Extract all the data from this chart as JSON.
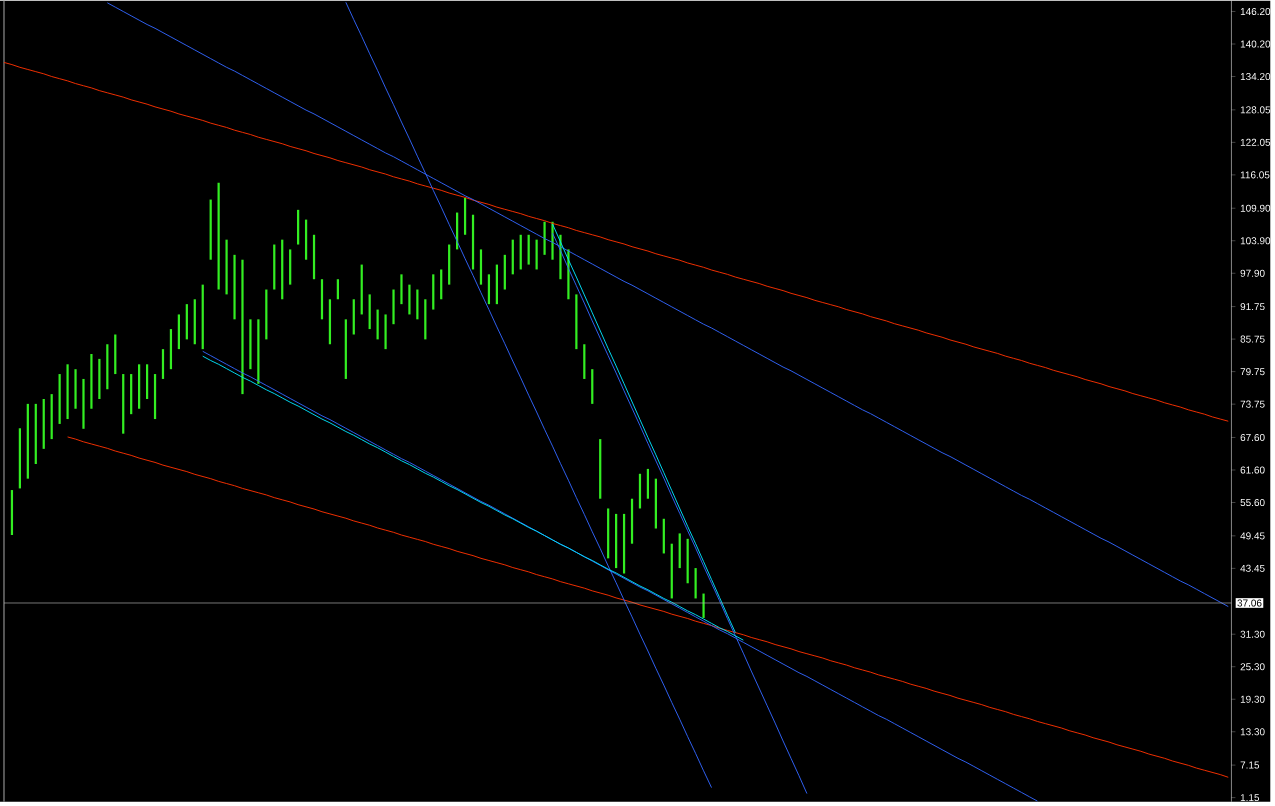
{
  "chart_data": {
    "type": "bar",
    "ylim": [
      0.4,
      148.2
    ],
    "tick_labels": "y",
    "grid": false,
    "categories": [
      null,
      null,
      null,
      null,
      null,
      null,
      null,
      null,
      null,
      null,
      null,
      null,
      null,
      null,
      null,
      null,
      null,
      null,
      null,
      null,
      null,
      null,
      null,
      null,
      null,
      null,
      null,
      null,
      null,
      null,
      null,
      null,
      null,
      null,
      null,
      null,
      null,
      null,
      null,
      null,
      null,
      null,
      null,
      null,
      null,
      null,
      null,
      null,
      null,
      null,
      null,
      null,
      null,
      null,
      null,
      null,
      null,
      null,
      null,
      null,
      null,
      null,
      null,
      null,
      null,
      null,
      null,
      null,
      null,
      null,
      null,
      null,
      null,
      null,
      null,
      null,
      null,
      null,
      null,
      null,
      null,
      null,
      null,
      null,
      null,
      null,
      null,
      null,
      null,
      null,
      null,
      null,
      null,
      null,
      null,
      null,
      null,
      null,
      null,
      null,
      null,
      null,
      null,
      null,
      null,
      null,
      null,
      null,
      null,
      null,
      null,
      null,
      null,
      null,
      null,
      null,
      null,
      null,
      null,
      null,
      null,
      null,
      null,
      null,
      null,
      null,
      null,
      null,
      null,
      null,
      null,
      null,
      null,
      null,
      null,
      null,
      null,
      null,
      null,
      null,
      null,
      null,
      null,
      null,
      null,
      null,
      null,
      null,
      null,
      null,
      null,
      null,
      null,
      null,
      null
    ],
    "yticks": [
      {
        "value": 1.15,
        "label": "1.15"
      },
      {
        "value": 7.15,
        "label": "7.15"
      },
      {
        "value": 13.3,
        "label": "13.30"
      },
      {
        "value": 19.3,
        "label": "19.30"
      },
      {
        "value": 25.3,
        "label": "25.30"
      },
      {
        "value": 31.3,
        "label": "31.30"
      },
      {
        "value": 43.45,
        "label": "43.45"
      },
      {
        "value": 49.45,
        "label": "49.45"
      },
      {
        "value": 55.6,
        "label": "55.60"
      },
      {
        "value": 61.6,
        "label": "61.60"
      },
      {
        "value": 67.6,
        "label": "67.60"
      },
      {
        "value": 73.75,
        "label": "73.75"
      },
      {
        "value": 79.75,
        "label": "79.75"
      },
      {
        "value": 85.75,
        "label": "85.75"
      },
      {
        "value": 91.75,
        "label": "91.75"
      },
      {
        "value": 97.9,
        "label": "97.90"
      },
      {
        "value": 103.9,
        "label": "103.90"
      },
      {
        "value": 109.9,
        "label": "109.90"
      },
      {
        "value": 116.05,
        "label": "116.05"
      },
      {
        "value": 122.05,
        "label": "122.05"
      },
      {
        "value": 128.05,
        "label": "128.05"
      },
      {
        "value": 134.2,
        "label": "134.20"
      },
      {
        "value": 140.2,
        "label": "140.20"
      },
      {
        "value": 146.2,
        "label": "146.20"
      }
    ],
    "ref_lines": [
      {
        "axis": "y",
        "value": 37.06,
        "label": "37.06",
        "color": "#b0b0b0"
      }
    ],
    "series": [
      {
        "color": "#33ee22",
        "base": [
          null,
          49.6,
          58.2,
          60.0,
          62.7,
          65.5,
          67.3,
          70.1,
          71.0,
          72.9,
          69.2,
          72.9,
          74.7,
          76.5,
          79.3,
          68.3,
          71.9,
          72.9,
          74.7,
          71.0,
          78.4,
          80.2,
          83.9,
          85.7,
          84.8,
          83.9,
          100.4,
          94.9,
          94.0,
          89.4,
          75.6,
          80.2,
          77.5,
          85.7,
          94.9,
          93.1,
          95.8,
          103.2,
          100.4,
          96.8,
          89.4,
          84.8,
          93.1,
          78.4,
          86.6,
          90.3,
          87.6,
          85.7,
          83.9,
          88.5,
          92.2,
          90.3,
          89.4,
          85.7,
          91.2,
          93.1,
          95.8,
          102.3,
          105.0,
          98.6,
          95.8,
          92.2,
          92.2,
          94.9,
          97.7,
          98.6,
          99.5,
          98.6,
          101.3,
          100.4,
          96.8,
          93.1,
          83.9,
          78.4,
          73.8,
          56.3,
          45.3,
          43.5,
          42.5,
          48.0,
          54.5,
          56.3,
          50.8,
          46.2,
          37.9,
          43.5,
          40.7,
          37.9,
          34.3,
          null,
          null,
          null,
          null,
          null,
          null,
          null,
          null,
          null,
          null,
          null,
          null,
          null,
          null,
          null,
          null,
          null,
          null,
          null,
          null,
          null,
          null,
          null,
          null,
          null,
          null,
          null,
          null,
          null,
          null,
          null,
          null,
          null,
          null,
          null,
          null,
          null,
          null,
          null,
          null,
          null,
          null,
          null,
          null,
          null,
          null,
          null,
          null,
          null,
          null,
          null,
          null,
          null,
          null,
          null,
          null,
          null,
          null,
          null,
          null,
          null,
          null,
          null,
          null,
          null,
          null
        ],
        "values": [
          null,
          8.3,
          11.1,
          13.8,
          11.1,
          9.2,
          8.3,
          9.2,
          10.1,
          7.3,
          9.2,
          10.1,
          7.4,
          8.3,
          7.3,
          11.0,
          7.4,
          8.2,
          6.4,
          8.3,
          5.5,
          7.4,
          6.4,
          6.5,
          8.3,
          11.9,
          11.1,
          19.7,
          10.1,
          11.9,
          24.8,
          9.2,
          11.9,
          9.2,
          8.3,
          11.0,
          6.5,
          6.4,
          7.4,
          8.2,
          7.4,
          8.3,
          3.7,
          11.0,
          6.5,
          9.2,
          6.4,
          5.5,
          6.4,
          6.4,
          5.5,
          5.5,
          5.5,
          7.4,
          6.5,
          5.5,
          7.4,
          6.8,
          6.8,
          10.1,
          6.5,
          5.5,
          7.3,
          6.4,
          6.4,
          6.4,
          5.5,
          5.5,
          6.1,
          7.0,
          8.2,
          9.2,
          10.1,
          6.4,
          6.4,
          11.0,
          9.2,
          10.0,
          11.0,
          8.3,
          6.4,
          5.5,
          9.2,
          6.4,
          10.1,
          6.4,
          8.2,
          5.6,
          4.5,
          null,
          null,
          null,
          null,
          null,
          null,
          null,
          null,
          null,
          null,
          null,
          null,
          null,
          null,
          null,
          null,
          null,
          null,
          null,
          null,
          null,
          null,
          null,
          null,
          null,
          null,
          null,
          null,
          null,
          null,
          null,
          null,
          null,
          null,
          null,
          null,
          null,
          null,
          null,
          null,
          null,
          null,
          null,
          null,
          null,
          null,
          null,
          null,
          null,
          null,
          null,
          null,
          null,
          null,
          null,
          null,
          null,
          null,
          null,
          null,
          null,
          null,
          null,
          null,
          null,
          null
        ]
      },
      {
        "type": "line",
        "color": "#ff3300",
        "values": [
          136.8,
          136.4,
          135.9,
          135.5,
          135.1,
          134.7,
          134.2,
          133.8,
          133.4,
          132.9,
          132.5,
          132.1,
          131.6,
          131.2,
          130.8,
          130.4,
          129.9,
          129.5,
          129.1,
          128.6,
          128.2,
          127.8,
          127.3,
          126.9,
          126.5,
          126.1,
          125.6,
          125.2,
          124.8,
          124.3,
          123.9,
          123.5,
          123.0,
          122.6,
          122.2,
          121.8,
          121.3,
          120.9,
          120.5,
          120.0,
          119.6,
          119.2,
          118.7,
          118.3,
          117.9,
          117.5,
          117.0,
          116.6,
          116.2,
          115.7,
          115.3,
          114.9,
          114.4,
          114.0,
          113.6,
          113.2,
          112.7,
          112.3,
          111.9,
          111.4,
          111.0,
          110.6,
          110.1,
          109.7,
          109.3,
          108.9,
          108.4,
          108.0,
          107.6,
          107.1,
          106.7,
          106.3,
          105.8,
          105.4,
          105.0,
          104.6,
          104.1,
          103.7,
          103.3,
          102.8,
          102.4,
          102.0,
          101.5,
          101.1,
          100.7,
          100.3,
          99.8,
          99.4,
          99.0,
          98.5,
          98.1,
          97.7,
          97.2,
          96.8,
          96.4,
          96.0,
          95.5,
          95.1,
          94.7,
          94.2,
          93.8,
          93.4,
          92.9,
          92.5,
          92.1,
          91.7,
          91.2,
          90.8,
          90.4,
          89.9,
          89.5,
          89.1,
          88.6,
          88.2,
          87.8,
          87.4,
          86.9,
          86.5,
          86.1,
          85.6,
          85.2,
          84.8,
          84.3,
          83.9,
          83.5,
          83.1,
          82.6,
          82.2,
          81.8,
          81.3,
          80.9,
          80.5,
          80.0,
          79.6,
          79.2,
          78.8,
          78.3,
          77.9,
          77.5,
          77.0,
          76.6,
          76.2,
          75.7,
          75.3,
          74.9,
          74.5,
          74.0,
          73.6,
          73.2,
          72.7,
          72.3,
          71.9,
          71.4,
          71.0,
          70.6
        ]
      },
      {
        "type": "line",
        "color": "#ff3300",
        "values": [
          null,
          null,
          null,
          null,
          null,
          null,
          null,
          null,
          67.7,
          67.3,
          66.8,
          66.4,
          66.0,
          65.6,
          65.1,
          64.7,
          64.3,
          63.8,
          63.4,
          63.0,
          62.5,
          62.1,
          61.7,
          61.3,
          60.8,
          60.4,
          60.0,
          59.5,
          59.1,
          58.7,
          58.2,
          57.8,
          57.4,
          57.0,
          56.5,
          56.1,
          55.7,
          55.2,
          54.8,
          54.4,
          53.9,
          53.5,
          53.1,
          52.7,
          52.2,
          51.8,
          51.4,
          50.9,
          50.5,
          50.1,
          49.6,
          49.2,
          48.8,
          48.4,
          47.9,
          47.5,
          47.1,
          46.6,
          46.2,
          45.8,
          45.3,
          44.9,
          44.5,
          44.1,
          43.6,
          43.2,
          42.8,
          42.3,
          41.9,
          41.5,
          41.0,
          40.6,
          40.2,
          39.8,
          39.3,
          38.9,
          38.5,
          38.0,
          37.6,
          37.2,
          36.7,
          36.3,
          35.9,
          35.5,
          35.0,
          34.6,
          34.2,
          33.7,
          33.3,
          32.9,
          32.4,
          32.0,
          31.6,
          31.2,
          30.7,
          30.3,
          29.9,
          29.4,
          29.0,
          28.6,
          28.1,
          27.7,
          27.3,
          26.9,
          26.4,
          26.0,
          25.6,
          25.1,
          24.7,
          24.3,
          23.8,
          23.4,
          23.0,
          22.6,
          22.1,
          21.7,
          21.3,
          20.8,
          20.4,
          20.0,
          19.5,
          19.1,
          18.7,
          18.3,
          17.8,
          17.4,
          17.0,
          16.5,
          16.1,
          15.7,
          15.2,
          14.8,
          14.4,
          14.0,
          13.5,
          13.1,
          12.7,
          12.2,
          11.8,
          11.4,
          10.9,
          10.5,
          10.1,
          9.7,
          9.2,
          8.8,
          8.4,
          7.9,
          7.5,
          7.1,
          6.6,
          6.2,
          5.8,
          5.4,
          4.9
        ]
      },
      {
        "type": "line",
        "color": "#3366ff",
        "values": [
          null,
          null,
          null,
          null,
          null,
          null,
          null,
          null,
          null,
          null,
          null,
          null,
          null,
          147.8,
          147.0,
          146.2,
          145.4,
          144.6,
          143.8,
          143.1,
          142.3,
          141.5,
          140.7,
          139.9,
          139.1,
          138.3,
          137.5,
          136.7,
          135.9,
          135.2,
          134.4,
          133.6,
          132.8,
          132.0,
          131.2,
          130.4,
          129.6,
          128.8,
          128.0,
          127.3,
          126.5,
          125.7,
          124.9,
          124.1,
          123.3,
          122.5,
          121.7,
          120.9,
          120.1,
          119.4,
          118.6,
          117.8,
          117.0,
          116.2,
          115.4,
          114.6,
          113.8,
          113.0,
          112.2,
          111.5,
          110.7,
          109.9,
          109.1,
          108.3,
          107.5,
          106.7,
          105.9,
          105.1,
          104.3,
          103.6,
          102.8,
          102.0,
          101.2,
          100.4,
          99.6,
          98.8,
          98.0,
          97.2,
          96.4,
          95.7,
          94.9,
          94.1,
          93.3,
          92.5,
          91.7,
          90.9,
          90.1,
          89.3,
          88.5,
          87.8,
          87.0,
          86.2,
          85.4,
          84.6,
          83.8,
          83.0,
          82.2,
          81.4,
          80.6,
          79.9,
          79.1,
          78.3,
          77.5,
          76.7,
          75.9,
          75.1,
          74.3,
          73.5,
          72.7,
          72.0,
          71.2,
          70.4,
          69.6,
          68.8,
          68.0,
          67.2,
          66.4,
          65.6,
          64.8,
          64.1,
          63.3,
          62.5,
          61.7,
          60.9,
          60.1,
          59.3,
          58.5,
          57.7,
          56.9,
          56.2,
          55.4,
          54.6,
          53.8,
          53.0,
          52.2,
          51.4,
          50.6,
          49.8,
          49.0,
          48.3,
          47.5,
          46.7,
          45.9,
          45.1,
          44.3,
          43.5,
          42.7,
          41.9,
          41.1,
          40.4,
          39.6,
          38.8,
          38.0,
          37.2,
          36.4
        ]
      },
      {
        "type": "line",
        "color": "#3366ff",
        "values": [
          null,
          null,
          null,
          null,
          null,
          null,
          null,
          null,
          null,
          null,
          null,
          null,
          null,
          null,
          null,
          null,
          null,
          null,
          null,
          null,
          null,
          null,
          null,
          null,
          null,
          null,
          null,
          null,
          null,
          null,
          null,
          null,
          null,
          null,
          null,
          null,
          null,
          null,
          null,
          null,
          null,
          null,
          null,
          147.9,
          144.7,
          141.6,
          138.4,
          135.3,
          132.1,
          129.0,
          125.8,
          122.7,
          119.5,
          116.4,
          113.2,
          110.1,
          106.9,
          103.8,
          100.6,
          97.5,
          94.3,
          91.2,
          88.0,
          84.9,
          81.7,
          78.6,
          75.4,
          72.3,
          69.1,
          66.0,
          62.8,
          59.7,
          56.5,
          53.4,
          50.2,
          47.1,
          43.9,
          40.8,
          37.6,
          34.5,
          31.3,
          28.2,
          25.0,
          21.9,
          18.7,
          15.6,
          12.4,
          9.3,
          6.1,
          3.0,
          null,
          null,
          null,
          null,
          null,
          null,
          null,
          null,
          null,
          null,
          null,
          null,
          null,
          null,
          null,
          null,
          null,
          null,
          null,
          null,
          null,
          null,
          null,
          null,
          null,
          null,
          null,
          null,
          null,
          null,
          null,
          null,
          null,
          null,
          null,
          null,
          null,
          null,
          null,
          null,
          null,
          null,
          null,
          null,
          null,
          null,
          null,
          null,
          null,
          null,
          null,
          null,
          null,
          null,
          null,
          null,
          null,
          null,
          null,
          null,
          null,
          null,
          null,
          null,
          null
        ]
      },
      {
        "type": "line",
        "color": "#3366ff",
        "values": [
          null,
          null,
          null,
          null,
          null,
          null,
          null,
          null,
          null,
          null,
          null,
          null,
          null,
          null,
          null,
          null,
          null,
          null,
          null,
          null,
          null,
          null,
          null,
          null,
          null,
          null,
          null,
          null,
          null,
          null,
          null,
          null,
          null,
          null,
          null,
          null,
          null,
          null,
          null,
          null,
          null,
          null,
          null,
          null,
          null,
          null,
          null,
          null,
          null,
          null,
          null,
          null,
          null,
          null,
          null,
          null,
          null,
          null,
          null,
          null,
          null,
          null,
          null,
          null,
          null,
          null,
          null,
          null,
          null,
          105.3,
          102.1,
          98.8,
          95.6,
          92.4,
          89.1,
          85.9,
          82.7,
          79.5,
          76.2,
          73.0,
          69.8,
          66.5,
          63.3,
          60.1,
          56.8,
          53.6,
          50.4,
          47.2,
          43.9,
          40.7,
          37.5,
          34.2,
          31.0,
          27.8,
          24.5,
          21.3,
          18.1,
          14.9,
          11.6,
          8.4,
          5.2,
          1.9,
          null,
          null,
          null,
          null,
          null,
          null,
          null,
          null,
          null,
          null,
          null,
          null,
          null,
          null,
          null,
          null,
          null,
          null,
          null,
          null,
          null,
          null,
          null,
          null,
          null,
          null,
          null,
          null,
          null,
          null,
          null,
          null,
          null,
          null,
          null,
          null,
          null,
          null,
          null,
          null,
          null,
          null,
          null,
          null,
          null,
          null,
          null,
          null,
          null,
          null,
          null,
          null,
          null
        ]
      },
      {
        "type": "line",
        "color": "#3366ff",
        "values": [
          null,
          null,
          null,
          null,
          null,
          null,
          null,
          null,
          null,
          null,
          null,
          null,
          null,
          null,
          null,
          null,
          null,
          null,
          null,
          null,
          null,
          null,
          null,
          null,
          null,
          83.5,
          82.7,
          81.9,
          81.1,
          80.3,
          79.5,
          78.8,
          78.0,
          77.2,
          76.4,
          75.6,
          74.8,
          74.0,
          73.2,
          72.4,
          71.6,
          70.9,
          70.1,
          69.3,
          68.5,
          67.7,
          66.9,
          66.1,
          65.3,
          64.5,
          63.7,
          63.0,
          62.2,
          61.4,
          60.6,
          59.8,
          59.0,
          58.2,
          57.4,
          56.6,
          55.8,
          55.1,
          54.3,
          53.5,
          52.7,
          51.9,
          51.1,
          50.3,
          49.5,
          48.7,
          47.9,
          47.2,
          46.4,
          45.6,
          44.8,
          44.0,
          43.2,
          42.4,
          41.6,
          40.8,
          40.0,
          39.3,
          38.5,
          37.7,
          36.9,
          36.1,
          35.3,
          34.5,
          33.7,
          32.9,
          32.1,
          31.4,
          30.6,
          29.8,
          29.0,
          28.2,
          27.4,
          26.6,
          25.8,
          25.0,
          24.2,
          23.5,
          22.7,
          21.9,
          21.1,
          20.3,
          19.5,
          18.7,
          17.9,
          17.1,
          16.3,
          15.6,
          14.8,
          14.0,
          13.2,
          12.4,
          11.6,
          10.8,
          10.0,
          9.2,
          8.4,
          7.7,
          6.9,
          6.1,
          5.3,
          4.5,
          3.7,
          2.9,
          2.1,
          1.3,
          0.5,
          null,
          null,
          null,
          null,
          null,
          null,
          null,
          null,
          null,
          null,
          null,
          null,
          null,
          null,
          null,
          null,
          null,
          null,
          null,
          null,
          null,
          null,
          null,
          null
        ]
      },
      {
        "type": "line",
        "color": "#00e5ff",
        "values": [
          null,
          null,
          null,
          null,
          null,
          null,
          null,
          null,
          null,
          null,
          null,
          null,
          null,
          null,
          null,
          null,
          null,
          null,
          null,
          null,
          null,
          null,
          null,
          null,
          null,
          82.6,
          81.8,
          81.1,
          80.3,
          79.5,
          78.7,
          78.0,
          77.2,
          76.4,
          75.7,
          74.9,
          74.1,
          73.4,
          72.6,
          71.8,
          71.0,
          70.3,
          69.5,
          68.7,
          68.0,
          67.2,
          66.4,
          65.7,
          64.9,
          64.1,
          63.3,
          62.6,
          61.8,
          61.0,
          60.3,
          59.5,
          58.7,
          58.0,
          57.2,
          56.4,
          55.6,
          54.9,
          54.1,
          53.3,
          52.6,
          51.8,
          51.0,
          50.3,
          49.5,
          48.7,
          47.9,
          47.2,
          46.4,
          45.6,
          44.9,
          44.1,
          43.3,
          42.6,
          41.8,
          41.0,
          40.2,
          39.5,
          38.7,
          37.9,
          37.2,
          36.4,
          35.6,
          34.9,
          34.1,
          33.3,
          32.5,
          31.8,
          31.0,
          30.2,
          null,
          null,
          null,
          null,
          null,
          null,
          null,
          null,
          null,
          null,
          null,
          null,
          null,
          null,
          null,
          null,
          null,
          null,
          null,
          null,
          null,
          null,
          null,
          null,
          null,
          null,
          null,
          null,
          null,
          null,
          null,
          null,
          null,
          null,
          null,
          null,
          null,
          null,
          null,
          null,
          null,
          null,
          null,
          null,
          null,
          null,
          null,
          null,
          null,
          null,
          null,
          null,
          null,
          null,
          null,
          null,
          null,
          null,
          null,
          null,
          null
        ]
      },
      {
        "type": "line",
        "color": "#00e5ff",
        "values": [
          null,
          null,
          null,
          null,
          null,
          null,
          null,
          null,
          null,
          null,
          null,
          null,
          null,
          null,
          null,
          null,
          null,
          null,
          null,
          null,
          null,
          null,
          null,
          null,
          null,
          null,
          null,
          null,
          null,
          null,
          null,
          null,
          null,
          null,
          null,
          null,
          null,
          null,
          null,
          null,
          null,
          null,
          null,
          null,
          null,
          null,
          null,
          null,
          null,
          null,
          null,
          null,
          null,
          null,
          null,
          null,
          null,
          null,
          null,
          null,
          null,
          null,
          null,
          null,
          null,
          null,
          null,
          null,
          null,
          107.0,
          103.7,
          100.4,
          97.2,
          93.9,
          90.6,
          87.3,
          84.0,
          80.8,
          77.5,
          74.2,
          70.9,
          67.6,
          64.4,
          61.1,
          57.8,
          54.5,
          51.2,
          48.0,
          44.7,
          41.4,
          38.1,
          34.8,
          31.6,
          null,
          null,
          null,
          null,
          null,
          null,
          null,
          null,
          null,
          null,
          null,
          null,
          null,
          null,
          null,
          null,
          null,
          null,
          null,
          null,
          null,
          null,
          null,
          null,
          null,
          null,
          null,
          null,
          null,
          null,
          null,
          null,
          null,
          null,
          null,
          null,
          null,
          null,
          null,
          null,
          null,
          null,
          null,
          null,
          null,
          null,
          null,
          null,
          null,
          null,
          null,
          null,
          null,
          null,
          null,
          null,
          null,
          null,
          null,
          null,
          null,
          null
        ]
      }
    ]
  }
}
